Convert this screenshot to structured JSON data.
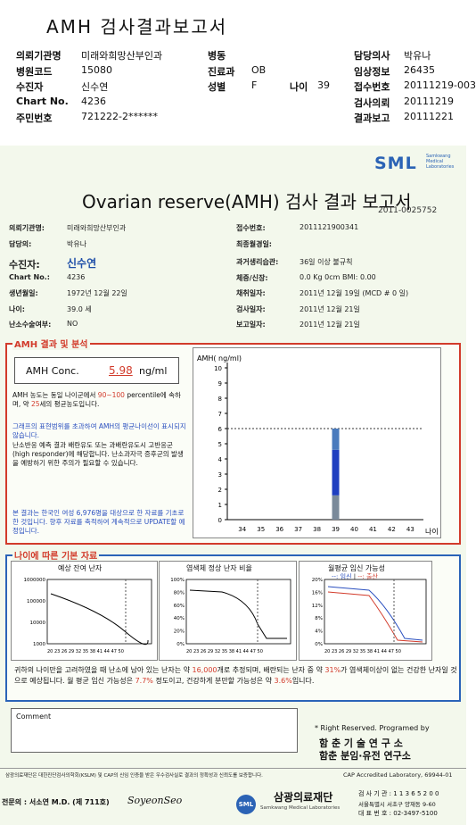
{
  "header": {
    "title": "AMH 검사결과보고서",
    "rows": [
      {
        "l1": "의뢰기관명",
        "v1": "미래와희망산부인과",
        "l2": "병동",
        "v2": "",
        "l3": "담당의사",
        "v3": "박유나"
      },
      {
        "l1": "병원코드",
        "v1": "15080",
        "l2": "진료과",
        "v2": "OB",
        "l3": "임상정보",
        "v3": "26435"
      },
      {
        "l1": "수진자",
        "v1": "신수연",
        "l2": "성별",
        "v2": "F",
        "l2b": "나이",
        "v2b": "39",
        "l3": "접수번호",
        "v3": "20111219-003"
      },
      {
        "l1": "Chart No.",
        "v1": "4236",
        "l2": "",
        "v2": "",
        "l3": "검사의뢰",
        "v3": "20111219"
      },
      {
        "l1": "주민번호",
        "v1": "721222-2******",
        "l2": "",
        "v2": "",
        "l3": "결과보고",
        "v3": "20111221"
      }
    ]
  },
  "report": {
    "logo": "SML",
    "logo_sub": "Samkwang Medical Laboratories",
    "title": "Ovarian reserve(AMH) 검사 결과 보고서",
    "doc_no": "2011-0025752",
    "left_info": [
      {
        "label": "의뢰기관명:",
        "value": "미래와희망산부인과"
      },
      {
        "label": "담당의:",
        "value": "박유나"
      },
      {
        "label": "수진자:",
        "value": "신수연"
      },
      {
        "label": "Chart No.:",
        "value": "4236"
      },
      {
        "label": "생년월일:",
        "value": "1972년 12월 22일"
      },
      {
        "label": "나이:",
        "value": "39.0 세"
      },
      {
        "label": "난소수술여부:",
        "value": "NO"
      }
    ],
    "right_info": [
      {
        "label": "접수번호:",
        "value": "2011121900341"
      },
      {
        "label": "최종월경일:",
        "value": ""
      },
      {
        "label": "과거생리습관:",
        "value": "36일 이상 불규칙"
      },
      {
        "label": "체중/신장:",
        "value": "0.0 Kg       0cm    BMI:    0.00"
      },
      {
        "label": "채취일자:",
        "value": "2011년 12월 19일  (MCD # 0 일)"
      },
      {
        "label": "검사일자:",
        "value": "2011년 12월 21일"
      },
      {
        "label": "보고일자:",
        "value": "2011년 12월 21일"
      }
    ]
  },
  "amh_section": {
    "title": "AMH 결과 및 분석",
    "conc_label": "AMH Conc.",
    "conc_value": "5.98",
    "conc_unit": "ng/ml",
    "para1_a": "AMH 농도는 동일 나이군에서",
    "para1_pct": "90~100",
    "para1_b": "percentile에 속하며, 약",
    "para1_age": "25",
    "para1_c": "세의 평균농도입니다.",
    "para2": "그래프의 표현범위를 초과하여 AMH의 평균나이선이 표시되지 않습니다.",
    "para3": "난소반응 예측 결과 배란유도 또는 과배란유도시 고반응군(high responder)에 해당합니다. 난소과자극 증후군의 발생을 예방하기 위한 주의가 필요할 수 있습니다.",
    "para4": "본 결과는 한국인 여성 6,976명을 대상으로 한 자료를 기초로 한 것입니다. 향후 자료를 축적하여 계속적으로 UPDATE할 예정입니다."
  },
  "chart_data": [
    {
      "type": "bar",
      "title": "AMH( ng/ml)",
      "xlabel": "나이",
      "x": [
        34,
        35,
        36,
        37,
        38,
        39,
        40,
        41,
        42,
        43
      ],
      "ylim": [
        0,
        10
      ],
      "yticks": [
        0,
        1,
        2,
        3,
        4,
        5,
        6,
        7,
        8,
        9,
        10
      ],
      "reference_line": 6,
      "bar_age": 39,
      "segments": [
        {
          "from": 0,
          "to": 1.6,
          "color": "#7a8a9a"
        },
        {
          "from": 1.6,
          "to": 4.6,
          "color": "#1f3fc0"
        },
        {
          "from": 4.6,
          "to": 6,
          "color": "#4a7bbd"
        }
      ]
    }
  ],
  "basics_section": {
    "title": "나이에 따른 기본 자료",
    "chart1_title": "예상 잔여 난자",
    "chart1_yticks": [
      "1000000",
      "100000",
      "10000",
      "1000"
    ],
    "chart2_title": "염색체 정상 난자 비율",
    "chart2_yticks": [
      "100%",
      "80%",
      "60%",
      "40%",
      "20%",
      "0%"
    ],
    "chart3_title": "월평균 임신 가능성",
    "chart3_legend_a": "임신",
    "chart3_legend_b": "출산",
    "chart3_yticks": [
      "20%",
      "16%",
      "12%",
      "8%",
      "4%",
      "0%"
    ],
    "xticks": "20 23 26 29 32 35 38 41 44 47 50",
    "chart3_xticks": "20 23 26 29 32 35 38 41 44 47 50",
    "summary_a": "귀하의 나이만을 고려하였을 때 난소에 남아 있는 난자는 약",
    "summary_eggs": "16,000",
    "summary_b": "개로 추정되며, 배란되는 난자 중 약",
    "summary_pct": "31%",
    "summary_c": "가 염색체이상이 없는 건강한 난자일 것으로 예상됩니다. 월 평균 임신 가능성은",
    "summary_preg": "7.7%",
    "summary_d": "정도이고, 건강하게 분만할 가능성은 약",
    "summary_birth": "3.6%",
    "summary_e": "입니다."
  },
  "comment": {
    "label": "Comment",
    "rights": "* Right Reserved. Programed by",
    "lab1": "함 춘  기 술  연 구 소",
    "lab2": "함춘 분임·유전 연구소"
  },
  "footer": {
    "cert_text": "삼광의료재단은 대한진단검사의학회(KSLM) 및 CAP의 신임 인증을 받은 우수검사실로 결과의 정확성과 신뢰도를 보증합니다.",
    "cap_text": "CAP Accredited Laboratory, 69944-01",
    "doctor": "전문의 : 서소연 M.D. (제 711호)",
    "signature": "SoyeonSeo",
    "org_name": "삼광의료재단",
    "org_sub": "Samkwang Medical Laboratories",
    "contact1": "검 사 기 관 : 1 1 3 6 5 2 0 0",
    "contact2": "서울특별시 서초구 양재동 9-60",
    "contact3": "대 표 번 호 : 02-3497-5100"
  }
}
